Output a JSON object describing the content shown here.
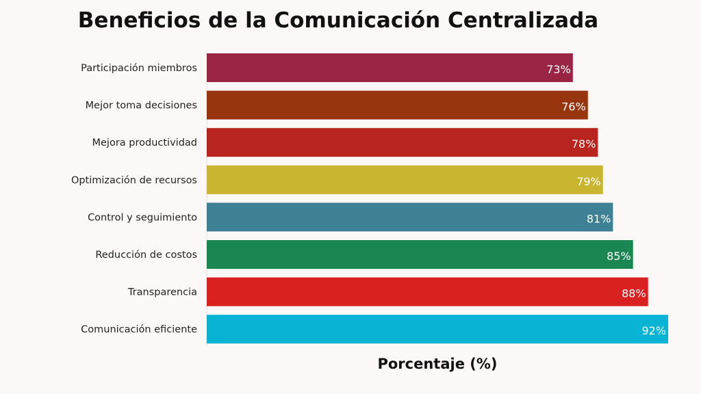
{
  "chart_data": {
    "type": "bar",
    "orientation": "horizontal",
    "title": "Beneficios de la Comunicación Centralizada",
    "xlabel": "Porcentaje (%)",
    "ylabel": "",
    "categories": [
      "Participación miembros",
      "Mejor toma decisiones",
      "Mejora productividad",
      "Optimización de recursos",
      "Control y seguimiento",
      "Reducción de costos",
      "Transparencia",
      "Comunicación eficiente"
    ],
    "values": [
      73,
      76,
      78,
      79,
      81,
      85,
      88,
      92
    ],
    "data_labels": [
      "73%",
      "76%",
      "78%",
      "79%",
      "81%",
      "85%",
      "88%",
      "92%"
    ],
    "colors": [
      "#9a2444",
      "#97350f",
      "#b8241e",
      "#c9b530",
      "#3e8094",
      "#1a8752",
      "#d92121",
      "#09b3d4"
    ],
    "xlim": [
      0,
      92
    ],
    "grid": false,
    "legend": "none"
  }
}
